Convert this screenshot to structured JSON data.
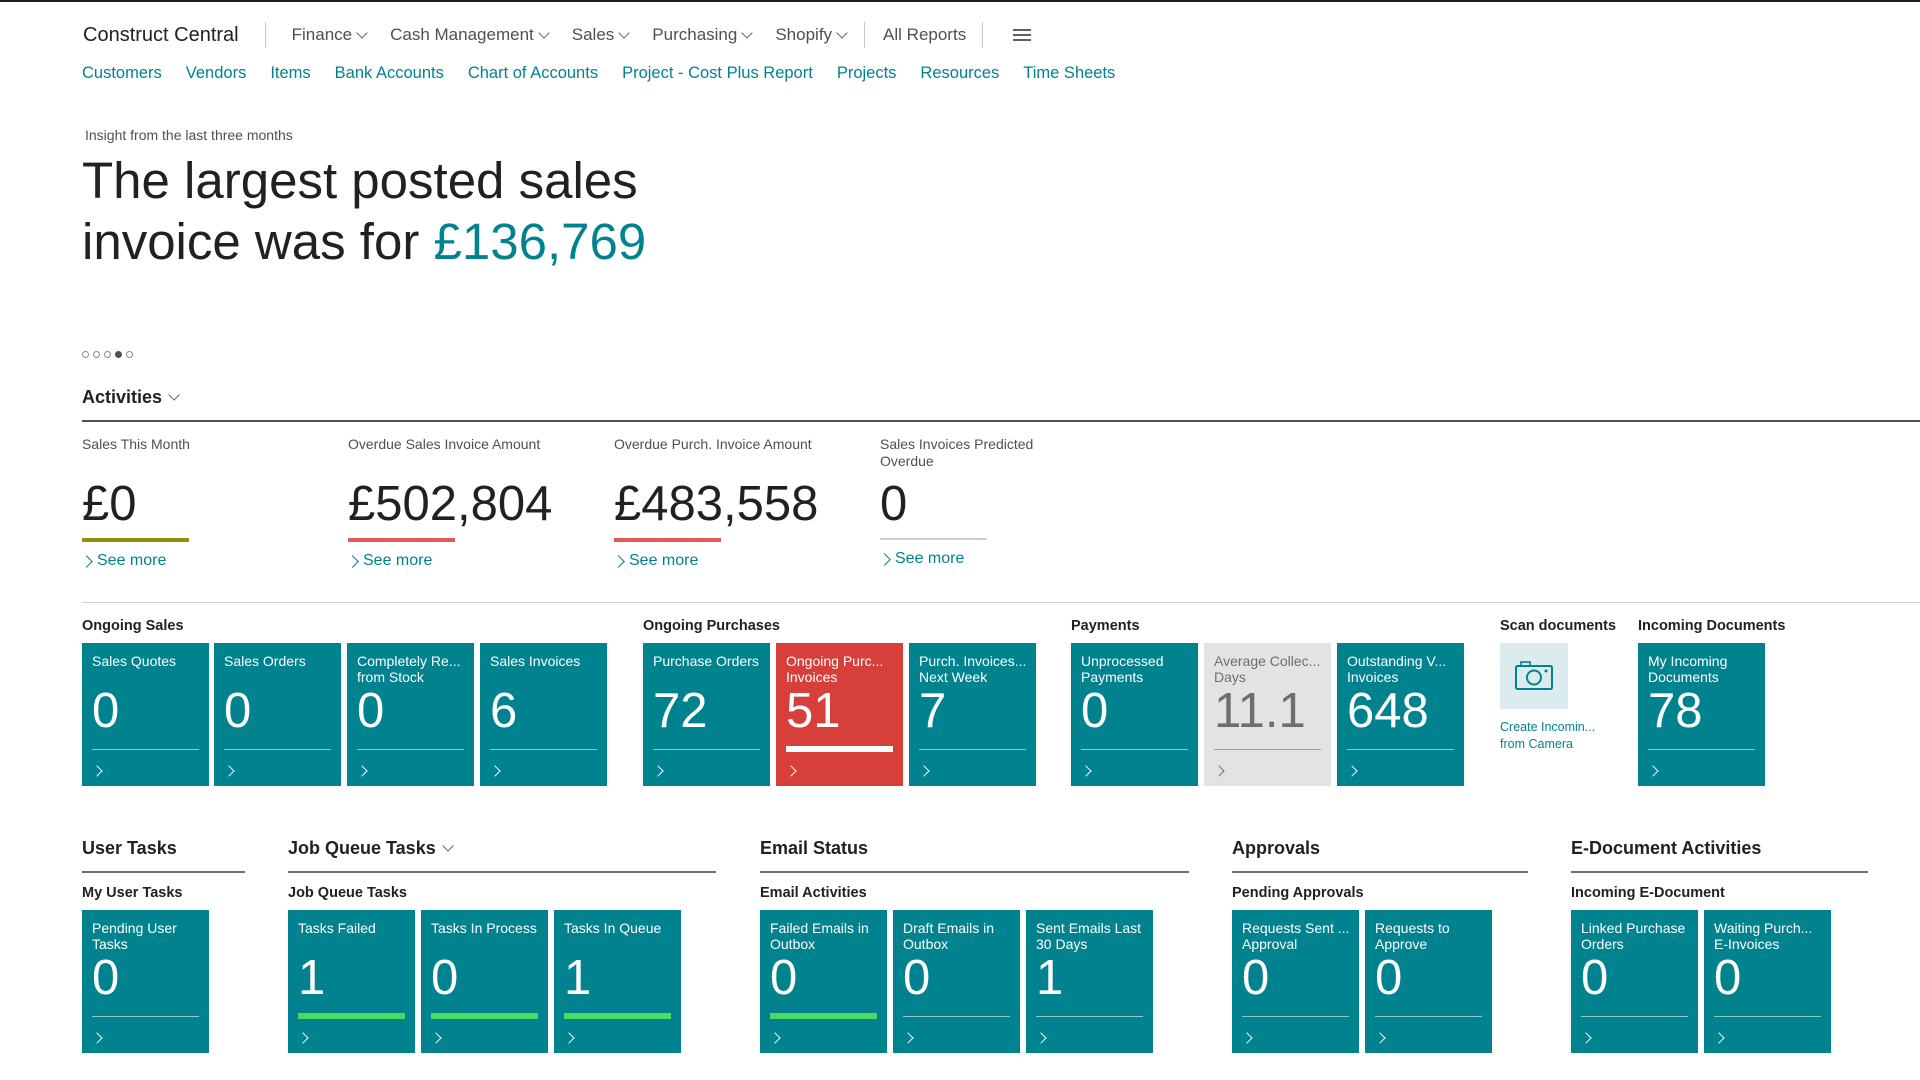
{
  "app": {
    "title": "Construct Central"
  },
  "nav": {
    "menus": [
      "Finance",
      "Cash Management",
      "Sales",
      "Purchasing",
      "Shopify"
    ],
    "all_reports": "All Reports",
    "more_icon": "hamburger-icon"
  },
  "quick_links": [
    "Customers",
    "Vendors",
    "Items",
    "Bank Accounts",
    "Chart of Accounts",
    "Project - Cost Plus Report",
    "Projects",
    "Resources",
    "Time Sheets"
  ],
  "insight": {
    "caption": "Insight from the last three months",
    "headline_text": "The largest posted sales invoice was for ",
    "headline_amount": "£136,769",
    "pages": 5,
    "active_page": 4
  },
  "activities": {
    "title": "Activities",
    "cues": [
      {
        "label": "Sales This Month",
        "value": "£0",
        "indicator_color": "#8f8f10",
        "more": "See more"
      },
      {
        "label": "Overdue Sales Invoice Amount",
        "value": "£502,804",
        "indicator_color": "#e05a5a",
        "more": "See more"
      },
      {
        "label": "Overdue Purch. Invoice Amount",
        "value": "£483,558",
        "indicator_color": "#e05a5a",
        "more": "See more"
      },
      {
        "label": "Sales Invoices Predicted Overdue",
        "value": "0",
        "indicator_color": "#cfcfcf",
        "more": "See more"
      }
    ]
  },
  "groups": {
    "ongoing_sales": {
      "title": "Ongoing Sales",
      "tiles": [
        {
          "label": "Sales Quotes",
          "value": "0"
        },
        {
          "label": "Sales Orders",
          "value": "0"
        },
        {
          "label": "Completely Re... from Stock",
          "value": "0"
        },
        {
          "label": "Sales Invoices",
          "value": "6"
        }
      ]
    },
    "ongoing_purchases": {
      "title": "Ongoing Purchases",
      "tiles": [
        {
          "label": "Purchase Orders",
          "value": "72"
        },
        {
          "label": "Ongoing Purc... Invoices",
          "value": "51",
          "style": "alert"
        },
        {
          "label": "Purch. Invoices... Next Week",
          "value": "7"
        }
      ]
    },
    "payments": {
      "title": "Payments",
      "tiles": [
        {
          "label": "Unprocessed Payments",
          "value": "0"
        },
        {
          "label": "Average Collec... Days",
          "value": "11.1",
          "style": "muted"
        },
        {
          "label": "Outstanding V... Invoices",
          "value": "648"
        }
      ]
    },
    "scan_documents": {
      "title": "Scan documents",
      "action_label": "Create Incomin... from Camera",
      "icon": "camera-icon"
    },
    "incoming_documents": {
      "title": "Incoming Documents",
      "tiles": [
        {
          "label": "My Incoming Documents",
          "value": "78"
        }
      ]
    }
  },
  "parts": {
    "user_tasks": {
      "title": "User Tasks",
      "subtitle": "My User Tasks",
      "tiles": [
        {
          "label": "Pending User Tasks",
          "value": "0"
        }
      ]
    },
    "job_queue": {
      "title": "Job Queue Tasks",
      "subtitle": "Job Queue Tasks",
      "tiles": [
        {
          "label": "Tasks Failed",
          "value": "1",
          "indicator": "#4cd964"
        },
        {
          "label": "Tasks In Process",
          "value": "0",
          "indicator": "#4cd964"
        },
        {
          "label": "Tasks In Queue",
          "value": "1",
          "indicator": "#4cd964"
        }
      ]
    },
    "email_status": {
      "title": "Email Status",
      "subtitle": "Email Activities",
      "tiles": [
        {
          "label": "Failed Emails in Outbox",
          "value": "0",
          "indicator": "#4cd964"
        },
        {
          "label": "Draft Emails in Outbox",
          "value": "0"
        },
        {
          "label": "Sent Emails Last 30 Days",
          "value": "1"
        }
      ]
    },
    "approvals": {
      "title": "Approvals",
      "subtitle": "Pending Approvals",
      "tiles": [
        {
          "label": "Requests Sent ... Approval",
          "value": "0"
        },
        {
          "label": "Requests to Approve",
          "value": "0"
        }
      ]
    },
    "edocs": {
      "title": "E-Document Activities",
      "subtitle": "Incoming E-Document",
      "tiles": [
        {
          "label": "Linked Purchase Orders",
          "value": "0"
        },
        {
          "label": "Waiting Purch... E-Invoices",
          "value": "0"
        }
      ]
    }
  }
}
